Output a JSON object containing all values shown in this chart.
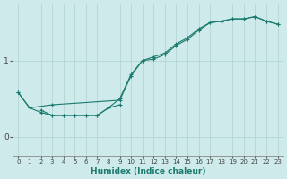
{
  "xlabel": "Humidex (Indice chaleur)",
  "ylabel": "",
  "bg_color": "#ceeaea",
  "line_color": "#1a7a6e",
  "grid_color": "#b8d8d8",
  "xlim": [
    -0.5,
    23.5
  ],
  "ylim": [
    -0.25,
    1.75
  ],
  "yticks": [
    0,
    1
  ],
  "xticks": [
    0,
    1,
    2,
    3,
    4,
    5,
    6,
    7,
    8,
    9,
    10,
    11,
    12,
    13,
    14,
    15,
    16,
    17,
    18,
    19,
    20,
    21,
    22,
    23
  ],
  "series1_x": [
    0,
    1,
    2,
    3,
    4,
    5,
    6,
    7,
    8,
    9,
    10,
    11,
    12,
    13,
    14,
    15,
    16,
    17,
    18,
    19,
    20,
    21,
    22,
    23
  ],
  "series1_y": [
    0.58,
    0.38,
    0.32,
    0.28,
    0.28,
    0.28,
    0.28,
    0.28,
    0.38,
    0.5,
    0.82,
    1.0,
    1.02,
    1.08,
    1.2,
    1.28,
    1.4,
    1.5,
    1.52,
    1.55,
    1.55,
    1.58,
    1.52,
    1.48
  ],
  "series2_x": [
    0,
    1,
    3,
    9,
    10,
    11,
    12,
    13,
    14,
    15,
    16,
    17,
    18,
    19,
    20,
    21,
    22,
    23
  ],
  "series2_y": [
    0.58,
    0.38,
    0.42,
    0.48,
    0.8,
    1.0,
    1.05,
    1.1,
    1.22,
    1.3,
    1.42,
    1.5,
    1.52,
    1.55,
    1.55,
    1.58,
    1.52,
    1.48
  ],
  "series3_x": [
    2,
    3,
    4,
    5,
    6,
    7,
    8,
    9
  ],
  "series3_y": [
    0.35,
    0.28,
    0.28,
    0.28,
    0.28,
    0.28,
    0.38,
    0.42
  ]
}
